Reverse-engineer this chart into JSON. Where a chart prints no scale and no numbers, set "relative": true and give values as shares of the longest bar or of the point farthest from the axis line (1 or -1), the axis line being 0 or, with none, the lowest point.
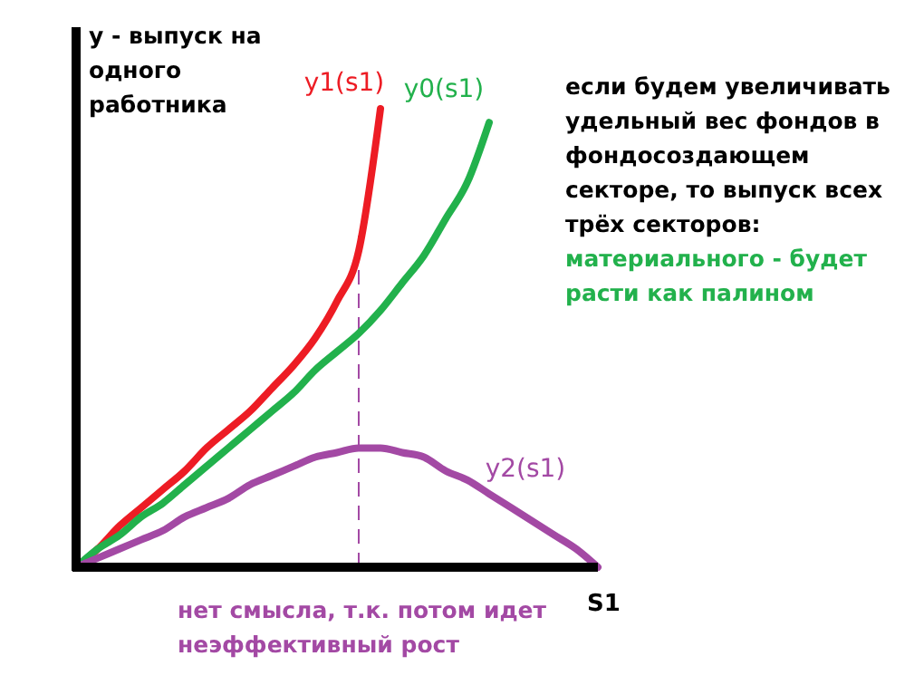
{
  "chart_data": {
    "type": "line",
    "relative": true,
    "ylabel": "y - выпуск на\nодного\nработника",
    "xlabel": "S1",
    "categories": [
      null,
      null,
      null,
      null,
      null,
      null,
      null,
      null,
      null,
      null,
      null,
      null,
      null,
      null,
      null,
      null,
      null,
      null,
      null,
      null,
      null,
      null,
      null,
      null,
      null
    ],
    "series": [
      {
        "name": "y1(s1)",
        "color": "#ed1c24",
        "values": [
          0,
          0.04,
          0.09,
          0.13,
          0.17,
          0.21,
          0.26,
          0.3,
          0.34,
          0.39,
          0.44,
          0.5,
          0.58,
          0.69,
          1,
          null,
          null,
          null,
          null,
          null,
          null,
          null,
          null,
          null,
          null
        ]
      },
      {
        "name": "y0(s1)",
        "color": "#22b14c",
        "values": [
          0,
          0.04,
          0.07,
          0.11,
          0.14,
          0.18,
          0.22,
          0.26,
          0.3,
          0.34,
          0.38,
          0.43,
          0.47,
          0.51,
          0.56,
          0.62,
          0.68,
          0.76,
          0.84,
          0.97,
          null,
          null,
          null,
          null,
          null
        ]
      },
      {
        "name": "y2(s1)",
        "color": "#a349a4",
        "values": [
          0,
          0.02,
          0.04,
          0.06,
          0.08,
          0.11,
          0.13,
          0.15,
          0.18,
          0.2,
          0.22,
          0.24,
          0.25,
          0.26,
          0.26,
          0.25,
          0.24,
          0.21,
          0.19,
          0.16,
          0.13,
          0.1,
          0.07,
          0.04,
          0
        ]
      }
    ],
    "annotations": [
      "если будем увеличивать\nудельный вес  фондов в\nфондосоздающем\nсекторе, то выпуск всех\nтрёх секторов:",
      "материального - будет\nрасти как палином",
      "нет смысла, т.к. потом идет\nнеэффективный рост"
    ],
    "legend": false
  }
}
